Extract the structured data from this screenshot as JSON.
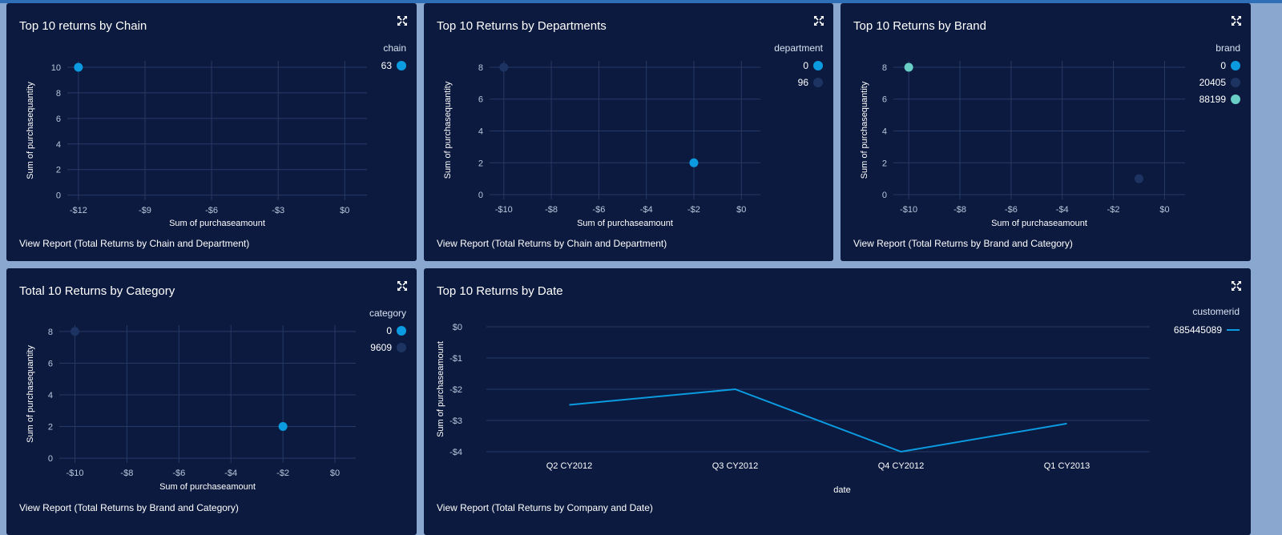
{
  "colors": {
    "panel_bg": "#0c1a3f",
    "grid": "#263a66",
    "axis_text": "#b9c6dc",
    "series_blue": "#0b9be0",
    "series_navy": "#1d3462",
    "series_teal": "#69cfc6"
  },
  "icons": {
    "expand": "expand-icon"
  },
  "panels": [
    {
      "id": "chain",
      "title": "Top 10 returns by Chain",
      "view_report": "View Report (Total Returns by Chain and Department)",
      "legend_title": "chain",
      "chart_data": {
        "type": "scatter",
        "xlabel": "Sum of purchaseamount",
        "ylabel": "Sum of purchasequantity",
        "xlim": [
          -12.5,
          1
        ],
        "ylim": [
          -0.4,
          10.5
        ],
        "x_ticks": [
          -12,
          -9,
          -6,
          -3,
          0
        ],
        "x_tick_labels": [
          "-$12",
          "-$9",
          "-$6",
          "-$3",
          "$0"
        ],
        "y_ticks": [
          0,
          2,
          4,
          6,
          8,
          10
        ],
        "y_tick_labels": [
          "0",
          "2",
          "4",
          "6",
          "8",
          "10"
        ],
        "series": [
          {
            "name": "63",
            "color": "#0b9be0",
            "points": [
              [
                -12,
                10
              ]
            ]
          }
        ]
      }
    },
    {
      "id": "departments",
      "title": "Top 10 Returns by Departments",
      "view_report": "View Report (Total Returns by Chain and Department)",
      "legend_title": "department",
      "chart_data": {
        "type": "scatter",
        "xlabel": "Sum of purchaseamount",
        "ylabel": "Sum of purchasequantity",
        "xlim": [
          -10.6,
          0.8
        ],
        "ylim": [
          -0.3,
          8.4
        ],
        "x_ticks": [
          -10,
          -8,
          -6,
          -4,
          -2,
          0
        ],
        "x_tick_labels": [
          "-$10",
          "-$8",
          "-$6",
          "-$4",
          "-$2",
          "$0"
        ],
        "y_ticks": [
          0,
          2,
          4,
          6,
          8
        ],
        "y_tick_labels": [
          "0",
          "2",
          "4",
          "6",
          "8"
        ],
        "series": [
          {
            "name": "0",
            "color": "#0b9be0",
            "points": [
              [
                -2,
                2
              ]
            ]
          },
          {
            "name": "96",
            "color": "#1d3462",
            "points": [
              [
                -10,
                8
              ]
            ]
          }
        ]
      }
    },
    {
      "id": "brand",
      "title": "Top 10 Returns by Brand",
      "view_report": "View Report (Total Returns by Brand and Category)",
      "legend_title": "brand",
      "chart_data": {
        "type": "scatter",
        "xlabel": "Sum of purchaseamount",
        "ylabel": "Sum of purchasequantity",
        "xlim": [
          -10.6,
          0.8
        ],
        "ylim": [
          -0.3,
          8.4
        ],
        "x_ticks": [
          -10,
          -8,
          -6,
          -4,
          -2,
          0
        ],
        "x_tick_labels": [
          "-$10",
          "-$8",
          "-$6",
          "-$4",
          "-$2",
          "$0"
        ],
        "y_ticks": [
          0,
          2,
          4,
          6,
          8
        ],
        "y_tick_labels": [
          "0",
          "2",
          "4",
          "6",
          "8"
        ],
        "series": [
          {
            "name": "0",
            "color": "#0b9be0",
            "points": []
          },
          {
            "name": "20405",
            "color": "#1d3462",
            "points": [
              [
                -1,
                1
              ]
            ]
          },
          {
            "name": "88199",
            "color": "#69cfc6",
            "points": [
              [
                -10,
                8
              ]
            ]
          }
        ]
      }
    },
    {
      "id": "category",
      "title": "Total 10 Returns by Category",
      "view_report": "View Report (Total Returns by Brand and Category)",
      "legend_title": "category",
      "chart_data": {
        "type": "scatter",
        "xlabel": "Sum of purchaseamount",
        "ylabel": "Sum of purchasequantity",
        "xlim": [
          -10.6,
          0.8
        ],
        "ylim": [
          -0.3,
          8.4
        ],
        "x_ticks": [
          -10,
          -8,
          -6,
          -4,
          -2,
          0
        ],
        "x_tick_labels": [
          "-$10",
          "-$8",
          "-$6",
          "-$4",
          "-$2",
          "$0"
        ],
        "y_ticks": [
          0,
          2,
          4,
          6,
          8
        ],
        "y_tick_labels": [
          "0",
          "2",
          "4",
          "6",
          "8"
        ],
        "series": [
          {
            "name": "0",
            "color": "#0b9be0",
            "points": [
              [
                -2,
                2
              ]
            ]
          },
          {
            "name": "9609",
            "color": "#1d3462",
            "points": [
              [
                -10,
                8
              ]
            ]
          }
        ]
      }
    },
    {
      "id": "date",
      "title": "Top 10 Returns by Date",
      "view_report": "View Report (Total Returns by Company and Date)",
      "legend_title": "customerid",
      "chart_data": {
        "type": "line",
        "xlabel": "date",
        "ylabel": "Sum of purchaseamount",
        "categories": [
          "Q2 CY2012",
          "Q3 CY2012",
          "Q4 CY2012",
          "Q1 CY2013"
        ],
        "ylim": [
          -4,
          0
        ],
        "y_ticks": [
          0,
          -1,
          -2,
          -3,
          -4
        ],
        "y_tick_labels": [
          "$0",
          "-$1",
          "-$2",
          "-$3",
          "-$4"
        ],
        "series": [
          {
            "name": "685445089",
            "color": "#0b9be0",
            "values": [
              -2.5,
              -2.0,
              -4.0,
              -3.1
            ]
          }
        ]
      }
    }
  ]
}
